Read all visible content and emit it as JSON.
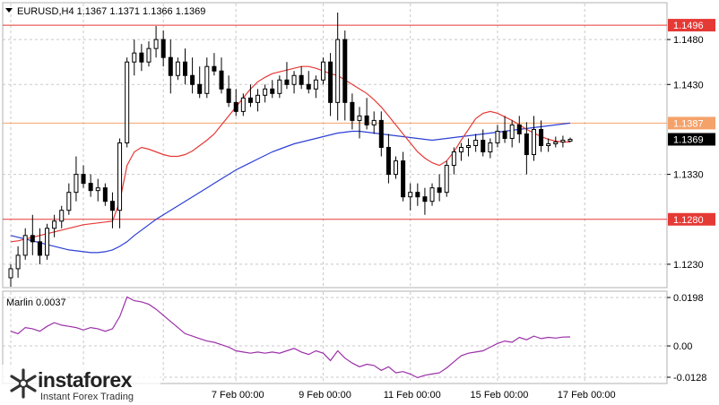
{
  "chart_data": [
    {
      "type": "candlestick",
      "symbol_info": "EURUSD,H4  1.1367 1.1371 1.1366 1.1369",
      "y_ticks": [
        "1.1480",
        "1.1430",
        "1.1330",
        "1.1230"
      ],
      "ylim": [
        1.1205,
        1.152
      ],
      "x_ticks": [
        "7 Feb 00:00",
        "9 Feb 00:00",
        "11 Feb 00:00",
        "15 Feb 00:00",
        "17 Feb 00:00"
      ],
      "x_tick_bars": [
        31,
        43,
        55,
        67,
        79
      ],
      "current_price": 1.1369,
      "current_price_label": "1.1369",
      "levels": [
        {
          "value": 1.1496,
          "label": "1.1496",
          "color": "#e53935"
        },
        {
          "value": 1.1387,
          "label": "1.1387",
          "color": "#f4a26a"
        },
        {
          "value": 1.128,
          "label": "1.1280",
          "color": "#e53935"
        }
      ],
      "candles": [
        [
          1.1215,
          1.123,
          1.1205,
          1.1225
        ],
        [
          1.1225,
          1.125,
          1.1215,
          1.124
        ],
        [
          1.124,
          1.127,
          1.1235,
          1.1262
        ],
        [
          1.1262,
          1.1285,
          1.124,
          1.1255
        ],
        [
          1.1255,
          1.127,
          1.123,
          1.124
        ],
        [
          1.124,
          1.1275,
          1.1235,
          1.127
        ],
        [
          1.127,
          1.1285,
          1.126,
          1.1278
        ],
        [
          1.1278,
          1.1295,
          1.127,
          1.129
        ],
        [
          1.129,
          1.132,
          1.1285,
          1.131
        ],
        [
          1.131,
          1.135,
          1.13,
          1.133
        ],
        [
          1.133,
          1.134,
          1.1315,
          1.132
        ],
        [
          1.132,
          1.133,
          1.1305,
          1.1312
        ],
        [
          1.1312,
          1.1325,
          1.13,
          1.1315
        ],
        [
          1.1315,
          1.132,
          1.1295,
          1.13
        ],
        [
          1.13,
          1.131,
          1.127,
          1.129
        ],
        [
          1.129,
          1.137,
          1.127,
          1.1365
        ],
        [
          1.1365,
          1.146,
          1.136,
          1.1455
        ],
        [
          1.1455,
          1.148,
          1.144,
          1.1465
        ],
        [
          1.1465,
          1.1475,
          1.1445,
          1.1455
        ],
        [
          1.1455,
          1.1478,
          1.145,
          1.147
        ],
        [
          1.147,
          1.1495,
          1.146,
          1.148
        ],
        [
          1.148,
          1.149,
          1.145,
          1.146
        ],
        [
          1.146,
          1.148,
          1.142,
          1.144
        ],
        [
          1.144,
          1.146,
          1.1435,
          1.1455
        ],
        [
          1.1455,
          1.147,
          1.143,
          1.144
        ],
        [
          1.144,
          1.146,
          1.142,
          1.143
        ],
        [
          1.143,
          1.145,
          1.1415,
          1.142
        ],
        [
          1.142,
          1.146,
          1.1415,
          1.145
        ],
        [
          1.145,
          1.1465,
          1.144,
          1.1445
        ],
        [
          1.1445,
          1.146,
          1.142,
          1.1425
        ],
        [
          1.1425,
          1.144,
          1.1405,
          1.141
        ],
        [
          1.141,
          1.1425,
          1.1395,
          1.14
        ],
        [
          1.14,
          1.142,
          1.1395,
          1.1415
        ],
        [
          1.1415,
          1.143,
          1.1405,
          1.141
        ],
        [
          1.141,
          1.1425,
          1.14,
          1.1418
        ],
        [
          1.1418,
          1.143,
          1.141,
          1.1425
        ],
        [
          1.1425,
          1.1435,
          1.1415,
          1.142
        ],
        [
          1.142,
          1.144,
          1.1415,
          1.1435
        ],
        [
          1.1435,
          1.1455,
          1.1425,
          1.143
        ],
        [
          1.143,
          1.1445,
          1.142,
          1.144
        ],
        [
          1.144,
          1.145,
          1.1425,
          1.143
        ],
        [
          1.143,
          1.1445,
          1.142,
          1.1425
        ],
        [
          1.1425,
          1.144,
          1.1415,
          1.1435
        ],
        [
          1.1435,
          1.146,
          1.143,
          1.1455
        ],
        [
          1.1455,
          1.1465,
          1.1395,
          1.141
        ],
        [
          1.141,
          1.151,
          1.139,
          1.148
        ],
        [
          1.148,
          1.149,
          1.139,
          1.141
        ],
        [
          1.141,
          1.142,
          1.138,
          1.139
        ],
        [
          1.139,
          1.1405,
          1.137,
          1.1395
        ],
        [
          1.1395,
          1.1415,
          1.138,
          1.1385
        ],
        [
          1.1385,
          1.14,
          1.1375,
          1.139
        ],
        [
          1.139,
          1.14,
          1.135,
          1.136
        ],
        [
          1.136,
          1.1375,
          1.132,
          1.133
        ],
        [
          1.133,
          1.135,
          1.1325,
          1.1345
        ],
        [
          1.1345,
          1.1355,
          1.13,
          1.1305
        ],
        [
          1.1305,
          1.132,
          1.129,
          1.131
        ],
        [
          1.131,
          1.132,
          1.1295,
          1.1305
        ],
        [
          1.1305,
          1.1315,
          1.1285,
          1.13
        ],
        [
          1.13,
          1.132,
          1.1295,
          1.1315
        ],
        [
          1.1315,
          1.133,
          1.13,
          1.131
        ],
        [
          1.131,
          1.1345,
          1.1305,
          1.134
        ],
        [
          1.134,
          1.136,
          1.133,
          1.1355
        ],
        [
          1.1355,
          1.1365,
          1.1345,
          1.136
        ],
        [
          1.136,
          1.137,
          1.135,
          1.1362
        ],
        [
          1.1362,
          1.1375,
          1.1355,
          1.1368
        ],
        [
          1.1368,
          1.138,
          1.135,
          1.1355
        ],
        [
          1.1355,
          1.137,
          1.1348,
          1.1365
        ],
        [
          1.1365,
          1.1385,
          1.136,
          1.1378
        ],
        [
          1.1378,
          1.1395,
          1.1365,
          1.137
        ],
        [
          1.137,
          1.139,
          1.136,
          1.1385
        ],
        [
          1.1385,
          1.1395,
          1.1365,
          1.1375
        ],
        [
          1.1375,
          1.1388,
          1.133,
          1.1352
        ],
        [
          1.1352,
          1.1395,
          1.1345,
          1.138
        ],
        [
          1.138,
          1.139,
          1.1355,
          1.1362
        ],
        [
          1.1362,
          1.137,
          1.1355,
          1.1364
        ],
        [
          1.1364,
          1.1372,
          1.136,
          1.1366
        ],
        [
          1.1366,
          1.1373,
          1.136,
          1.1368
        ],
        [
          1.1367,
          1.1371,
          1.1366,
          1.1369
        ]
      ],
      "ma_red": [
        1.1255,
        1.1256,
        1.1258,
        1.126,
        1.1262,
        1.1264,
        1.1266,
        1.1268,
        1.127,
        1.1272,
        1.1274,
        1.1275,
        1.1276,
        1.1277,
        1.1278,
        1.13,
        1.134,
        1.1355,
        1.136,
        1.1358,
        1.1355,
        1.1352,
        1.135,
        1.135,
        1.1352,
        1.1356,
        1.1362,
        1.1368,
        1.1375,
        1.1385,
        1.1395,
        1.1405,
        1.1415,
        1.1425,
        1.1433,
        1.1438,
        1.1442,
        1.1444,
        1.1446,
        1.1448,
        1.145,
        1.145,
        1.1448,
        1.1445,
        1.1442,
        1.144,
        1.1435,
        1.143,
        1.1425,
        1.142,
        1.1413,
        1.1405,
        1.1395,
        1.1385,
        1.1375,
        1.1365,
        1.1355,
        1.1348,
        1.1343,
        1.134,
        1.1345,
        1.1355,
        1.1368,
        1.138,
        1.1392,
        1.1398,
        1.14,
        1.1398,
        1.1394,
        1.139,
        1.1385,
        1.138,
        1.1376,
        1.1372,
        1.1369,
        1.1367,
        1.1366,
        1.1366
      ],
      "ma_blue": [
        1.1262,
        1.126,
        1.1258,
        1.1256,
        1.1254,
        1.1252,
        1.125,
        1.1248,
        1.1246,
        1.1245,
        1.1244,
        1.1243,
        1.1243,
        1.1244,
        1.1246,
        1.125,
        1.1255,
        1.1262,
        1.1268,
        1.1274,
        1.128,
        1.1285,
        1.129,
        1.1295,
        1.13,
        1.1305,
        1.131,
        1.1315,
        1.132,
        1.1325,
        1.133,
        1.1335,
        1.1339,
        1.1343,
        1.1347,
        1.1351,
        1.1355,
        1.1358,
        1.1361,
        1.1364,
        1.1366,
        1.1368,
        1.137,
        1.1372,
        1.1374,
        1.1376,
        1.1377,
        1.1378,
        1.1378,
        1.1377,
        1.1376,
        1.1375,
        1.1374,
        1.1373,
        1.1372,
        1.1371,
        1.137,
        1.1369,
        1.1368,
        1.1369,
        1.137,
        1.1371,
        1.1372,
        1.1373,
        1.1374,
        1.1375,
        1.1376,
        1.1377,
        1.1378,
        1.1379,
        1.138,
        1.1381,
        1.1382,
        1.1383,
        1.1384,
        1.1385,
        1.1386,
        1.1387
      ],
      "line_colors": {
        "bull": "#ffffff",
        "bear": "#000000",
        "ma_red": "#e53935",
        "ma_blue": "#2b3fd6",
        "grid": "#c8c8c8"
      }
    },
    {
      "type": "line",
      "name": "Marlin 0.0037",
      "y_ticks": [
        "0.0198",
        "0.00",
        "-0.0128"
      ],
      "ylim": [
        -0.015,
        0.022
      ],
      "values": [
        0.006,
        0.005,
        0.0075,
        0.007,
        0.006,
        0.008,
        0.0095,
        0.0085,
        0.008,
        0.0075,
        0.0065,
        0.0075,
        0.007,
        0.006,
        0.007,
        0.012,
        0.02,
        0.0185,
        0.018,
        0.017,
        0.015,
        0.0125,
        0.01,
        0.0075,
        0.005,
        0.004,
        0.003,
        0.002,
        0.0015,
        0.0005,
        -0.0005,
        -0.002,
        -0.0025,
        -0.003,
        -0.0025,
        -0.003,
        -0.0025,
        -0.003,
        -0.002,
        -0.001,
        -0.0025,
        -0.0035,
        -0.002,
        -0.003,
        -0.006,
        -0.002,
        -0.005,
        -0.007,
        -0.0085,
        -0.0075,
        -0.008,
        -0.01,
        -0.0085,
        -0.011,
        -0.0105,
        -0.0115,
        -0.013,
        -0.012,
        -0.0115,
        -0.011,
        -0.009,
        -0.0065,
        -0.004,
        -0.003,
        -0.0025,
        -0.002,
        -0.0005,
        0.001,
        0.002,
        0.0015,
        0.0035,
        0.0025,
        0.004,
        0.003,
        0.0035,
        0.0032,
        0.0036,
        0.0037
      ],
      "color": "#9b2fa8"
    }
  ],
  "watermark": {
    "brand": "instaforex",
    "tagline": "Instant Forex Trading",
    "logo_icon": "asterisk-logo-icon"
  }
}
